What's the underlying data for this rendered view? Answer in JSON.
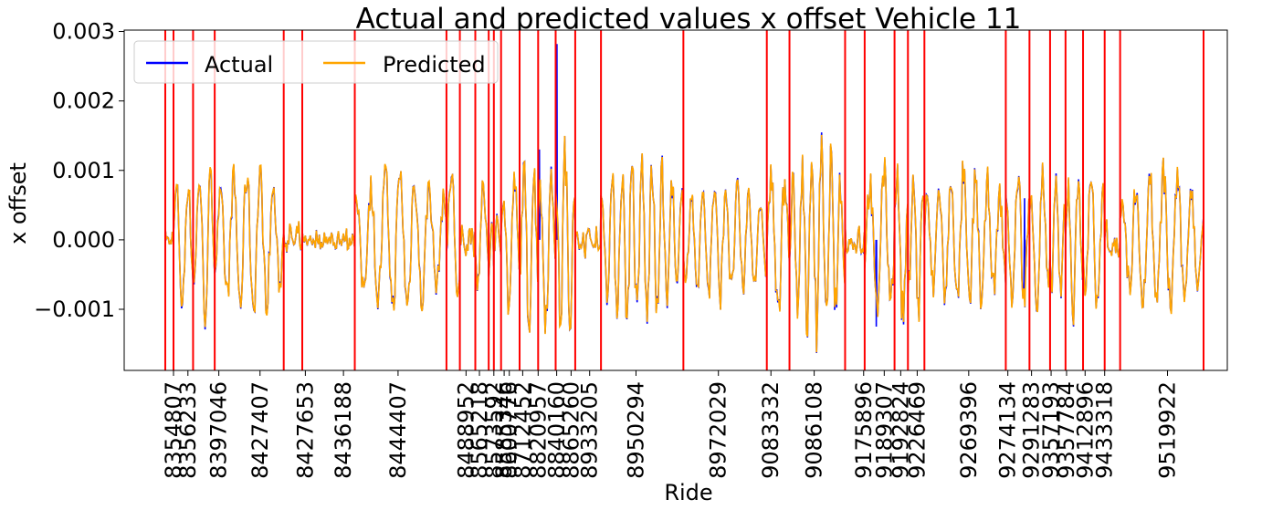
{
  "chart_data": {
    "type": "line",
    "title": "Actual and predicted values x offset Vehicle 11",
    "xlabel": "Ride",
    "ylabel": "x offset",
    "ylim": [
      -0.00188,
      0.00302
    ],
    "yticks": [
      -0.001,
      0.0,
      0.001,
      0.002,
      0.003
    ],
    "ytick_labels": [
      "−0.001",
      "0.000",
      "0.001",
      "0.002",
      "0.003"
    ],
    "legend": {
      "placement": "upper-left",
      "entries": [
        "Actual",
        "Predicted"
      ]
    },
    "colors": {
      "actual": "#0000ff",
      "predicted": "#ffa500",
      "boundary": "#ff0000"
    },
    "series": [
      {
        "name": "Actual",
        "color": "#0000ff"
      },
      {
        "name": "Predicted",
        "color": "#ffa500"
      }
    ],
    "rides": [
      "8354807",
      "8356233",
      "8397046",
      "8427407",
      "8427653",
      "8436188",
      "8444407",
      "8488952",
      "8565218",
      "8573592",
      "8585346",
      "8600776",
      "8712452",
      "8820957",
      "8840160",
      "8865260",
      "8933205",
      "8950294",
      "8972029",
      "9083332",
      "9086108",
      "9175896",
      "9189307",
      "9192824",
      "9226469",
      "9269396",
      "9274134",
      "9291283",
      "9357193",
      "9357784",
      "9412896",
      "9433318",
      "9519922"
    ],
    "ride_tick_positions": [
      0.0,
      0.014,
      0.044,
      0.084,
      0.128,
      0.165,
      0.218,
      0.284,
      0.297,
      0.311,
      0.321,
      0.326,
      0.339,
      0.354,
      0.372,
      0.386,
      0.404,
      0.449,
      0.529,
      0.58,
      0.622,
      0.67,
      0.69,
      0.706,
      0.722,
      0.772,
      0.81,
      0.833,
      0.852,
      0.867,
      0.885,
      0.904,
      0.965
    ],
    "boundaries": [
      -0.008,
      0.0,
      0.019,
      0.04,
      0.107,
      0.125,
      0.176,
      0.265,
      0.278,
      0.293,
      0.306,
      0.311,
      0.318,
      0.336,
      0.354,
      0.371,
      0.39,
      0.415,
      0.495,
      0.576,
      0.598,
      0.652,
      0.671,
      0.7,
      0.713,
      0.729,
      0.808,
      0.831,
      0.851,
      0.866,
      0.883,
      0.904,
      0.919,
      1.0
    ],
    "segment_amplitude_max": [
      0.0002,
      0.0011,
      0.0012,
      0.0011,
      0.0003,
      0.0002,
      0.0011,
      0.0012,
      0.0003,
      0.0009,
      0.0006,
      0.0006,
      0.0011,
      0.0013,
      0.0012,
      0.0015,
      0.0003,
      0.0013,
      0.0009,
      0.0013,
      0.0015,
      0.0003,
      0.0012,
      0.0013,
      0.0012,
      0.0011,
      0.0011,
      0.0011,
      0.0011,
      0.0012,
      0.0012,
      0.0004,
      0.0011
    ],
    "actual_spikes": [
      {
        "position": 0.372,
        "value": 0.00282
      },
      {
        "position": 0.355,
        "value": 0.0013
      },
      {
        "position": 0.682,
        "value": -0.00125
      },
      {
        "position": 0.826,
        "value": 0.0006
      }
    ]
  }
}
